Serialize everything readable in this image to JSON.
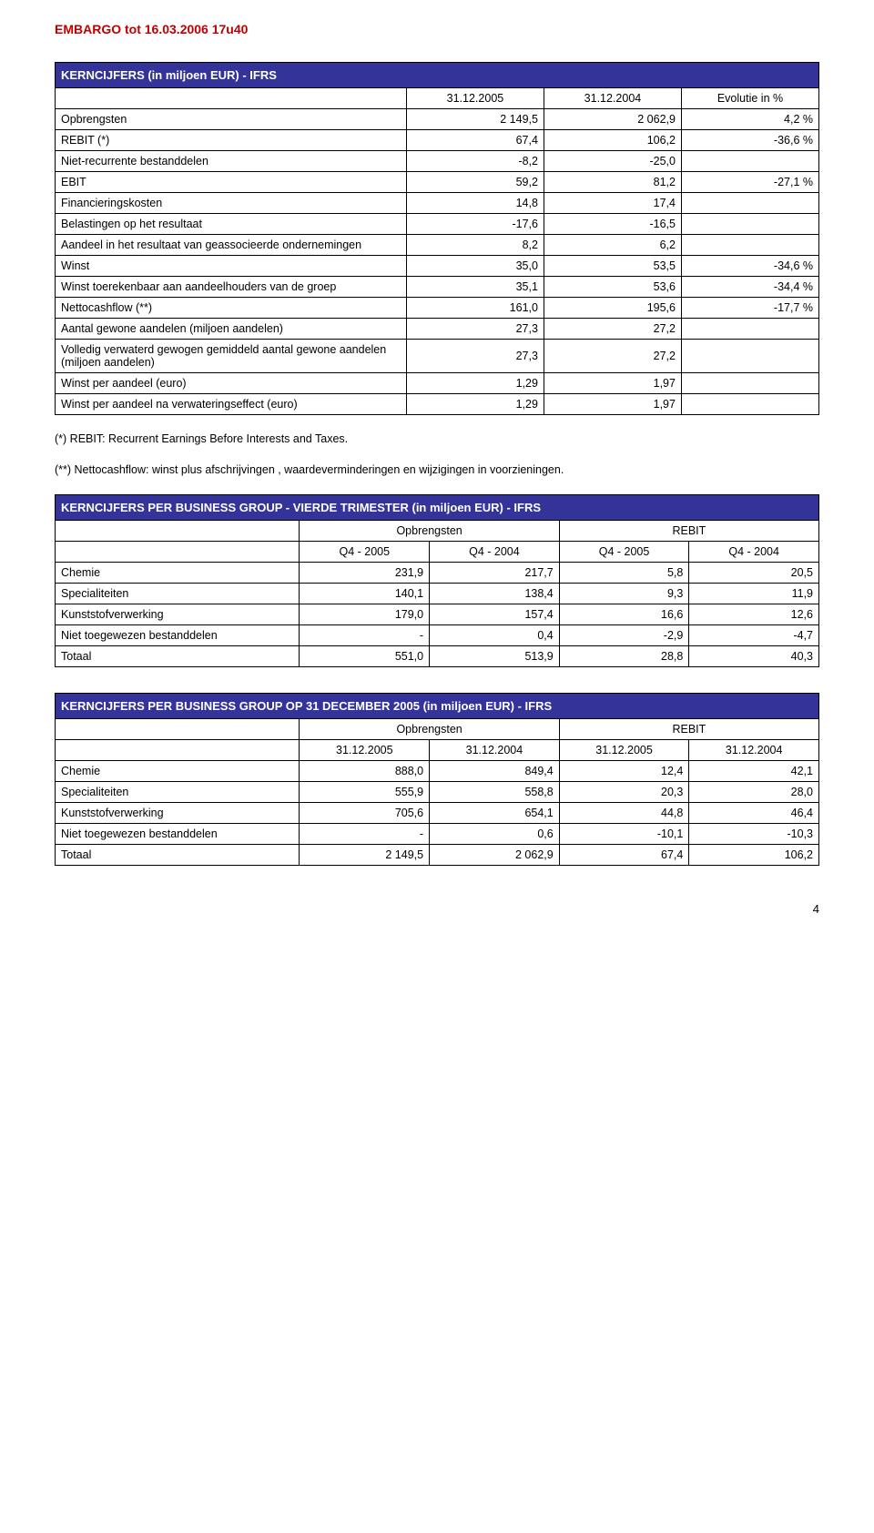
{
  "embargo": "EMBARGO tot 16.03.2006 17u40",
  "table1": {
    "title": "KERNCIJFERS (in miljoen EUR) - IFRS",
    "cols": [
      "31.12.2005",
      "31.12.2004",
      "Evolutie in %"
    ],
    "rows": [
      {
        "label": "Opbrengsten",
        "v": [
          "2 149,5",
          "2 062,9",
          "4,2 %"
        ]
      },
      {
        "label": "REBIT (*)",
        "v": [
          "67,4",
          "106,2",
          "-36,6 %"
        ]
      },
      {
        "label": "Niet-recurrente bestanddelen",
        "v": [
          "-8,2",
          "-25,0",
          ""
        ]
      },
      {
        "label": "EBIT",
        "v": [
          "59,2",
          "81,2",
          "-27,1 %"
        ]
      },
      {
        "label": "Financieringskosten",
        "v": [
          "14,8",
          "17,4",
          ""
        ]
      },
      {
        "label": "Belastingen op het resultaat",
        "v": [
          "-17,6",
          "-16,5",
          ""
        ]
      },
      {
        "label": "Aandeel in het resultaat van geassocieerde ondernemingen",
        "v": [
          "8,2",
          "6,2",
          ""
        ]
      },
      {
        "label": "Winst",
        "v": [
          "35,0",
          "53,5",
          "-34,6 %"
        ]
      },
      {
        "label": "Winst toerekenbaar aan aandeelhouders van de groep",
        "v": [
          "35,1",
          "53,6",
          "-34,4 %"
        ]
      },
      {
        "label": "Nettocashflow (**)",
        "v": [
          "161,0",
          "195,6",
          "-17,7 %"
        ]
      },
      {
        "label": "Aantal gewone aandelen (miljoen aandelen)",
        "v": [
          "27,3",
          "27,2",
          ""
        ]
      },
      {
        "label": "Volledig verwaterd gewogen gemiddeld aantal gewone aandelen (miljoen aandelen)",
        "v": [
          "27,3",
          "27,2",
          ""
        ]
      },
      {
        "label": "Winst per aandeel (euro)",
        "v": [
          "1,29",
          "1,97",
          ""
        ]
      },
      {
        "label": "Winst per aandeel na verwateringseffect (euro)",
        "v": [
          "1,29",
          "1,97",
          ""
        ]
      }
    ]
  },
  "footnote1": "(*)   REBIT: Recurrent Earnings Before Interests and Taxes.",
  "footnote2": "(**) Nettocashflow: winst plus afschrijvingen , waardeverminderingen en wijzigingen in voorzieningen.",
  "table2": {
    "title": "KERNCIJFERS PER BUSINESS GROUP - VIERDE TRIMESTER (in miljoen EUR) - IFRS",
    "group1": "Opbrengsten",
    "group2": "REBIT",
    "cols": [
      "Q4 - 2005",
      "Q4 - 2004",
      "Q4 - 2005",
      "Q4 - 2004"
    ],
    "rows": [
      {
        "label": "Chemie",
        "v": [
          "231,9",
          "217,7",
          "5,8",
          "20,5"
        ]
      },
      {
        "label": "Specialiteiten",
        "v": [
          "140,1",
          "138,4",
          "9,3",
          "11,9"
        ]
      },
      {
        "label": "Kunststofverwerking",
        "v": [
          "179,0",
          "157,4",
          "16,6",
          "12,6"
        ]
      },
      {
        "label": "Niet toegewezen bestanddelen",
        "v": [
          "-",
          "0,4",
          "-2,9",
          "-4,7"
        ]
      },
      {
        "label": "Totaal",
        "v": [
          "551,0",
          "513,9",
          "28,8",
          "40,3"
        ]
      }
    ]
  },
  "table3": {
    "title": "KERNCIJFERS PER BUSINESS GROUP OP 31 DECEMBER 2005 (in miljoen EUR) - IFRS",
    "group1": "Opbrengsten",
    "group2": "REBIT",
    "cols": [
      "31.12.2005",
      "31.12.2004",
      "31.12.2005",
      "31.12.2004"
    ],
    "rows": [
      {
        "label": "Chemie",
        "v": [
          "888,0",
          "849,4",
          "12,4",
          "42,1"
        ]
      },
      {
        "label": "Specialiteiten",
        "v": [
          "555,9",
          "558,8",
          "20,3",
          "28,0"
        ]
      },
      {
        "label": "Kunststofverwerking",
        "v": [
          "705,6",
          "654,1",
          "44,8",
          "46,4"
        ]
      },
      {
        "label": "Niet toegewezen bestanddelen",
        "v": [
          "-",
          "0,6",
          "-10,1",
          "-10,3"
        ]
      },
      {
        "label": "Totaal",
        "v": [
          "2 149,5",
          "2 062,9",
          "67,4",
          "106,2"
        ]
      }
    ]
  },
  "pagenum": "4",
  "colors": {
    "header_bg": "#333399",
    "header_fg": "#ffffff",
    "embargo": "#c00000",
    "border": "#000000"
  },
  "col_widths": {
    "table1": [
      "46%",
      "18%",
      "18%",
      "18%"
    ],
    "table2_3": [
      "32%",
      "17%",
      "17%",
      "17%",
      "17%"
    ]
  }
}
